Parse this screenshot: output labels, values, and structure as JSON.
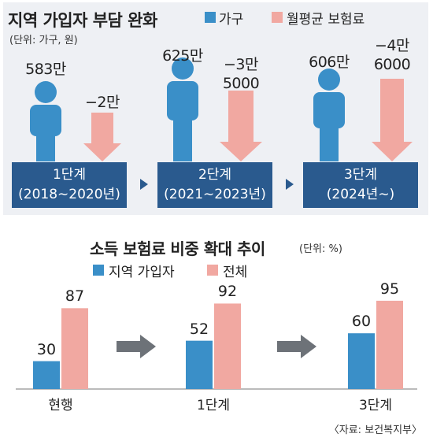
{
  "top": {
    "title": "지역 가입자 부담 완화",
    "unit": "(단위: 가구, 원)",
    "legend": [
      {
        "label": "가구",
        "color": "#3a8fc8"
      },
      {
        "label": "월평균 보험료",
        "color": "#f1a8a1"
      }
    ],
    "stages": [
      {
        "households": "583만",
        "premium_change": "−2만",
        "stage": "1단계",
        "period": "(2018∼2020년)"
      },
      {
        "households": "625만",
        "premium_change": "−3만\n5000",
        "stage": "2단계",
        "period": "(2021∼2023년)"
      },
      {
        "households": "606만",
        "premium_change": "−4만\n6000",
        "stage": "3단계",
        "period": "(2024년∼)"
      }
    ]
  },
  "chart_data": {
    "type": "bar",
    "title": "소득 보험료 비중 확대 추이",
    "unit": "(단위: %)",
    "categories": [
      "현행",
      "1단계",
      "3단계"
    ],
    "series": [
      {
        "name": "지역 가입자",
        "values": [
          30,
          52,
          60
        ],
        "color": "#3a8fc8"
      },
      {
        "name": "전체",
        "values": [
          87,
          92,
          95
        ],
        "color": "#f1a8a1"
      }
    ],
    "ylim": [
      0,
      100
    ]
  },
  "source": "〈자료: 보건복지부〉"
}
